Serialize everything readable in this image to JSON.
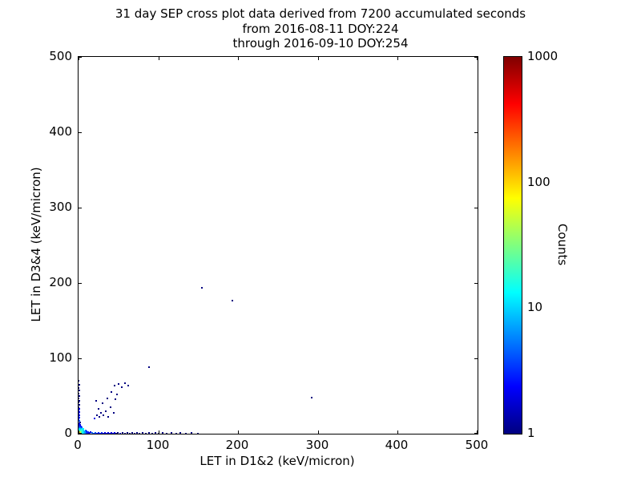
{
  "title": {
    "line1": "31 day SEP cross plot data derived from 7200 accumulated seconds",
    "line2": "from 2016-08-11 DOY:224",
    "line3": "through 2016-09-10 DOY:254"
  },
  "axes": {
    "xlabel": "LET in D1&2 (keV/micron)",
    "ylabel": "LET in D3&4 (keV/micron)",
    "x_ticks": [
      "0",
      "100",
      "200",
      "300",
      "400",
      "500"
    ],
    "y_ticks": [
      "0",
      "100",
      "200",
      "300",
      "400",
      "500"
    ],
    "xlim": [
      0,
      500
    ],
    "ylim": [
      0,
      500
    ]
  },
  "colorbar": {
    "label": "Counts",
    "ticks": [
      "1000",
      "100",
      "10",
      "1"
    ],
    "scale": "log",
    "range": [
      1,
      1000
    ],
    "colormap": "jet"
  },
  "chart_data": {
    "type": "scatter",
    "title": "31 day SEP cross plot data derived from 7200 accumulated seconds from 2016-08-11 DOY:224 through 2016-09-10 DOY:254",
    "xlabel": "LET in D1&2 (keV/micron)",
    "ylabel": "LET in D3&4 (keV/micron)",
    "xlim": [
      0,
      500
    ],
    "ylim": [
      0,
      500
    ],
    "color_label": "Counts",
    "color_scale": "log",
    "color_range": [
      1,
      1000
    ],
    "colormap": "jet",
    "points": [
      [
        0,
        0,
        1000
      ],
      [
        1,
        0,
        700
      ],
      [
        0,
        1,
        600
      ],
      [
        1,
        1,
        450
      ],
      [
        2,
        0,
        350
      ],
      [
        0,
        2,
        320
      ],
      [
        2,
        1,
        260
      ],
      [
        1,
        2,
        240
      ],
      [
        2,
        2,
        190
      ],
      [
        3,
        0,
        170
      ],
      [
        0,
        3,
        160
      ],
      [
        3,
        1,
        140
      ],
      [
        1,
        3,
        130
      ],
      [
        3,
        2,
        110
      ],
      [
        2,
        3,
        100
      ],
      [
        3,
        3,
        85
      ],
      [
        4,
        0,
        80
      ],
      [
        0,
        4,
        75
      ],
      [
        4,
        1,
        70
      ],
      [
        1,
        4,
        65
      ],
      [
        4,
        2,
        55
      ],
      [
        2,
        4,
        50
      ],
      [
        4,
        4,
        40
      ],
      [
        5,
        0,
        38
      ],
      [
        0,
        5,
        36
      ],
      [
        5,
        1,
        32
      ],
      [
        1,
        5,
        30
      ],
      [
        5,
        2,
        26
      ],
      [
        2,
        5,
        24
      ],
      [
        5,
        5,
        20
      ],
      [
        6,
        1,
        18
      ],
      [
        1,
        6,
        17
      ],
      [
        6,
        2,
        15
      ],
      [
        2,
        6,
        14
      ],
      [
        6,
        6,
        12
      ],
      [
        7,
        1,
        11
      ],
      [
        1,
        7,
        10
      ],
      [
        7,
        3,
        9
      ],
      [
        3,
        7,
        8
      ],
      [
        8,
        1,
        8
      ],
      [
        1,
        8,
        7
      ],
      [
        8,
        2,
        7
      ],
      [
        2,
        8,
        6
      ],
      [
        9,
        1,
        6
      ],
      [
        1,
        9,
        5
      ],
      [
        9,
        4,
        5
      ],
      [
        4,
        9,
        4
      ],
      [
        10,
        1,
        4
      ],
      [
        1,
        10,
        4
      ],
      [
        10,
        3,
        3
      ],
      [
        3,
        10,
        3
      ],
      [
        11,
        1,
        3
      ],
      [
        1,
        11,
        3
      ],
      [
        12,
        2,
        3
      ],
      [
        2,
        12,
        2
      ],
      [
        13,
        1,
        2
      ],
      [
        1,
        13,
        2
      ],
      [
        14,
        1,
        2
      ],
      [
        1,
        14,
        2
      ],
      [
        15,
        2,
        2
      ],
      [
        2,
        15,
        1
      ],
      [
        17,
        1,
        5
      ],
      [
        19,
        0,
        4
      ],
      [
        21,
        1,
        4
      ],
      [
        23,
        0,
        3
      ],
      [
        25,
        1,
        3
      ],
      [
        27,
        0,
        3
      ],
      [
        29,
        1,
        3
      ],
      [
        31,
        0,
        2
      ],
      [
        33,
        1,
        2
      ],
      [
        35,
        0,
        2
      ],
      [
        37,
        1,
        2
      ],
      [
        39,
        0,
        2
      ],
      [
        41,
        1,
        2
      ],
      [
        43,
        0,
        2
      ],
      [
        45,
        1,
        2
      ],
      [
        47,
        0,
        1
      ],
      [
        49,
        1,
        1
      ],
      [
        52,
        0,
        2
      ],
      [
        55,
        1,
        1
      ],
      [
        58,
        0,
        1
      ],
      [
        61,
        1,
        1
      ],
      [
        64,
        0,
        1
      ],
      [
        67,
        1,
        1
      ],
      [
        70,
        0,
        1
      ],
      [
        73,
        1,
        1
      ],
      [
        76,
        0,
        1
      ],
      [
        80,
        1,
        1
      ],
      [
        84,
        0,
        1
      ],
      [
        88,
        1,
        1
      ],
      [
        92,
        0,
        1
      ],
      [
        96,
        1,
        1
      ],
      [
        100,
        0,
        1
      ],
      [
        105,
        1,
        1
      ],
      [
        110,
        0,
        1
      ],
      [
        116,
        1,
        1
      ],
      [
        122,
        0,
        1
      ],
      [
        128,
        1,
        1
      ],
      [
        135,
        0,
        1
      ],
      [
        142,
        1,
        1
      ],
      [
        150,
        0,
        1
      ],
      [
        1,
        17,
        4
      ],
      [
        0,
        19,
        3
      ],
      [
        1,
        21,
        3
      ],
      [
        0,
        23,
        3
      ],
      [
        1,
        25,
        2
      ],
      [
        0,
        27,
        2
      ],
      [
        1,
        29,
        2
      ],
      [
        0,
        31,
        2
      ],
      [
        1,
        33,
        2
      ],
      [
        0,
        35,
        1
      ],
      [
        1,
        38,
        1
      ],
      [
        0,
        41,
        1
      ],
      [
        1,
        44,
        1
      ],
      [
        0,
        47,
        1
      ],
      [
        1,
        50,
        1
      ],
      [
        0,
        53,
        1
      ],
      [
        1,
        57,
        1
      ],
      [
        0,
        61,
        1
      ],
      [
        1,
        65,
        1
      ],
      [
        0,
        70,
        1
      ],
      [
        20,
        20,
        2
      ],
      [
        23,
        24,
        1
      ],
      [
        26,
        22,
        1
      ],
      [
        28,
        28,
        1
      ],
      [
        31,
        25,
        1
      ],
      [
        25,
        33,
        1
      ],
      [
        34,
        30,
        1
      ],
      [
        37,
        22,
        1
      ],
      [
        30,
        40,
        1
      ],
      [
        40,
        35,
        1
      ],
      [
        22,
        44,
        1
      ],
      [
        44,
        28,
        1
      ],
      [
        46,
        46,
        1
      ],
      [
        41,
        55,
        1
      ],
      [
        45,
        64,
        1
      ],
      [
        50,
        66,
        1
      ],
      [
        54,
        62,
        1
      ],
      [
        58,
        67,
        1
      ],
      [
        62,
        64,
        1
      ],
      [
        48,
        52,
        1
      ],
      [
        36,
        47,
        1
      ],
      [
        88,
        88,
        1
      ],
      [
        155,
        194,
        1
      ],
      [
        193,
        177,
        1
      ],
      [
        292,
        48,
        1
      ]
    ]
  }
}
